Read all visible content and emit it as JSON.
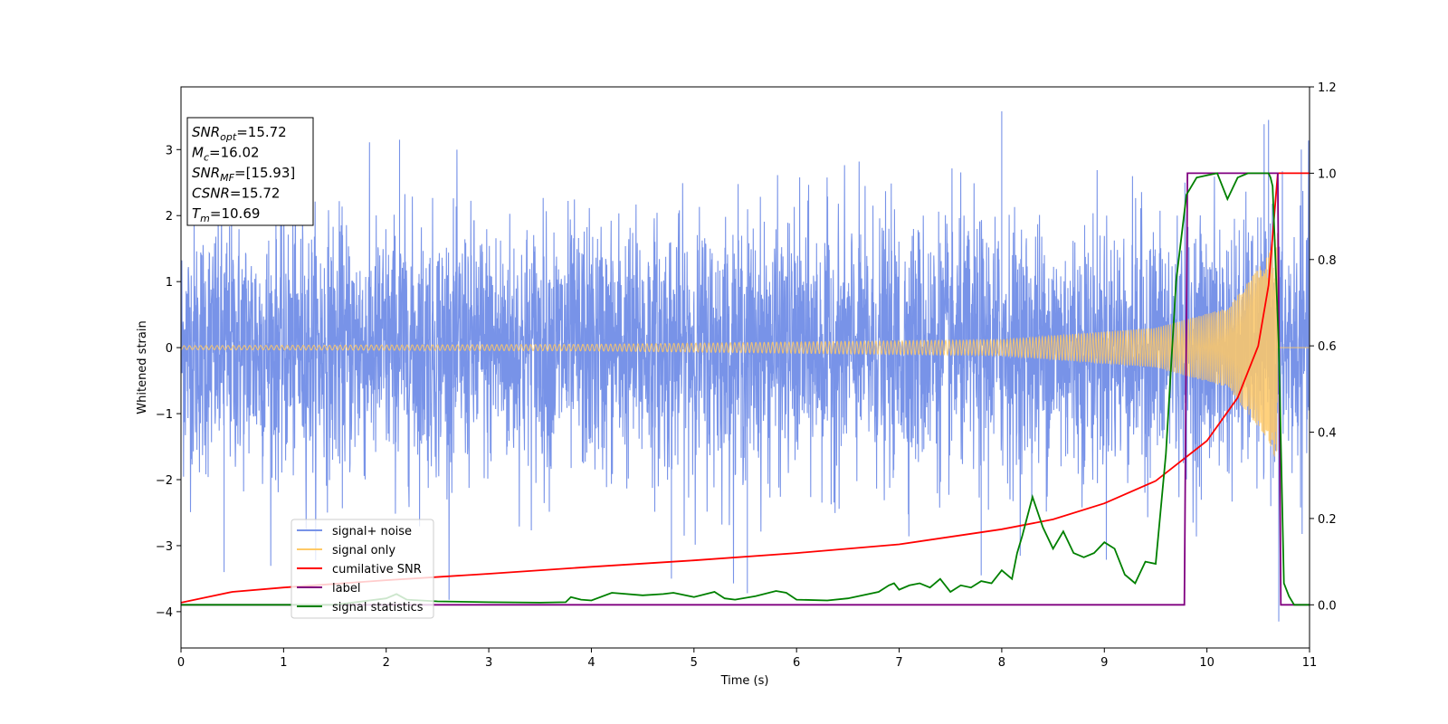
{
  "chart_data": {
    "type": "line",
    "title": "",
    "xlabel": "Time (s)",
    "ylabel": "Whitened strain",
    "y2label": "",
    "xlim": [
      0,
      11
    ],
    "ylim": [
      -4.55,
      3.95
    ],
    "y2lim": [
      -0.1,
      1.2
    ],
    "x_ticks": [
      0,
      1,
      2,
      3,
      4,
      5,
      6,
      7,
      8,
      9,
      10,
      11
    ],
    "y_ticks": [
      -4,
      -3,
      -2,
      -1,
      0,
      1,
      2,
      3
    ],
    "y2_ticks": [
      0.0,
      0.2,
      0.4,
      0.6,
      0.8,
      1.0,
      1.2
    ],
    "y_tick_labels": [
      "−4",
      "−3",
      "−2",
      "−1",
      "0",
      "1",
      "2",
      "3"
    ],
    "y2_tick_labels": [
      "0.0",
      "0.2",
      "0.4",
      "0.6",
      "0.8",
      "1.0",
      "1.2"
    ],
    "legend_position": "lower-left",
    "grid": false,
    "info_box": [
      {
        "base": "SNR",
        "sub": "opt",
        "value": "=15.72"
      },
      {
        "base": "M",
        "sub": "c",
        "value": "=16.02"
      },
      {
        "base": "SNR",
        "sub": "MF",
        "value": "=[15.93]"
      },
      {
        "base": "CSNR",
        "sub": "",
        "value": "=15.72"
      },
      {
        "base": "T",
        "sub": "m",
        "value": "=10.69"
      }
    ],
    "series": [
      {
        "name": "signal+ noise",
        "color": "#7893e8",
        "axis": "left",
        "description": "whitened noise, std ~1, peaks +3.6 at 8.0 s, -4.15 at 10.7 s",
        "notable_peaks": [
          [
            0.42,
            -3.4
          ],
          [
            2.13,
            3.15
          ],
          [
            4.78,
            -3.5
          ],
          [
            5.52,
            -3.72
          ],
          [
            8.0,
            3.58
          ],
          [
            7.8,
            -3.45
          ],
          [
            10.6,
            3.45
          ],
          [
            10.7,
            -4.15
          ],
          [
            10.92,
            3.0
          ]
        ]
      },
      {
        "name": "signal only",
        "color": "#ffc966",
        "axis": "left",
        "description": "chirp, amplitude grows to ~1.8, ends at Tm=10.69 s",
        "amplitude_at": [
          [
            0,
            0.03
          ],
          [
            4,
            0.05
          ],
          [
            8,
            0.12
          ],
          [
            9.5,
            0.3
          ],
          [
            10.2,
            0.6
          ],
          [
            10.6,
            1.4
          ],
          [
            10.69,
            1.8
          ]
        ]
      },
      {
        "name": "cumilative SNR",
        "color": "#ff0000",
        "axis": "right",
        "x": [
          0,
          0.5,
          1,
          2,
          3,
          4,
          5,
          6,
          7,
          8,
          8.5,
          9,
          9.5,
          10,
          10.3,
          10.5,
          10.6,
          10.69,
          11
        ],
        "y": [
          0.005,
          0.03,
          0.04,
          0.057,
          0.072,
          0.088,
          0.103,
          0.12,
          0.14,
          0.175,
          0.198,
          0.235,
          0.287,
          0.38,
          0.48,
          0.6,
          0.74,
          1.0,
          1.0
        ]
      },
      {
        "name": "label",
        "color": "#800080",
        "axis": "right",
        "x": [
          0,
          9.78,
          9.81,
          10.69,
          10.72,
          11
        ],
        "y": [
          0,
          0,
          1,
          1,
          0,
          0
        ]
      },
      {
        "name": "signal statistics",
        "color": "#008000",
        "axis": "right",
        "x": [
          0,
          0.5,
          1,
          1.5,
          2,
          2.1,
          2.2,
          2.5,
          3,
          3.5,
          3.75,
          3.8,
          3.9,
          4,
          4.2,
          4.5,
          4.7,
          4.8,
          5,
          5.2,
          5.3,
          5.4,
          5.6,
          5.8,
          5.9,
          6,
          6.3,
          6.5,
          6.8,
          6.9,
          6.95,
          7,
          7.1,
          7.2,
          7.3,
          7.4,
          7.5,
          7.6,
          7.7,
          7.8,
          7.9,
          8,
          8.1,
          8.15,
          8.2,
          8.3,
          8.4,
          8.5,
          8.6,
          8.7,
          8.8,
          8.9,
          9,
          9.1,
          9.2,
          9.3,
          9.4,
          9.5,
          9.6,
          9.7,
          9.8,
          9.9,
          10,
          10.1,
          10.2,
          10.3,
          10.4,
          10.5,
          10.6,
          10.62,
          10.64,
          10.7,
          10.75,
          10.8,
          10.85,
          11
        ],
        "y": [
          0.0,
          0.0,
          0.0,
          0.0,
          0.015,
          0.025,
          0.012,
          0.008,
          0.006,
          0.005,
          0.006,
          0.018,
          0.012,
          0.01,
          0.028,
          0.022,
          0.025,
          0.028,
          0.018,
          0.03,
          0.015,
          0.012,
          0.02,
          0.032,
          0.028,
          0.012,
          0.01,
          0.015,
          0.03,
          0.045,
          0.05,
          0.035,
          0.045,
          0.05,
          0.04,
          0.06,
          0.03,
          0.045,
          0.04,
          0.055,
          0.05,
          0.08,
          0.06,
          0.12,
          0.16,
          0.25,
          0.18,
          0.13,
          0.17,
          0.12,
          0.11,
          0.12,
          0.145,
          0.13,
          0.07,
          0.05,
          0.1,
          0.095,
          0.35,
          0.75,
          0.95,
          0.99,
          0.995,
          1.0,
          0.94,
          0.99,
          1.0,
          1.0,
          1.0,
          0.99,
          0.97,
          0.6,
          0.05,
          0.02,
          0.0,
          0.0
        ]
      }
    ]
  }
}
